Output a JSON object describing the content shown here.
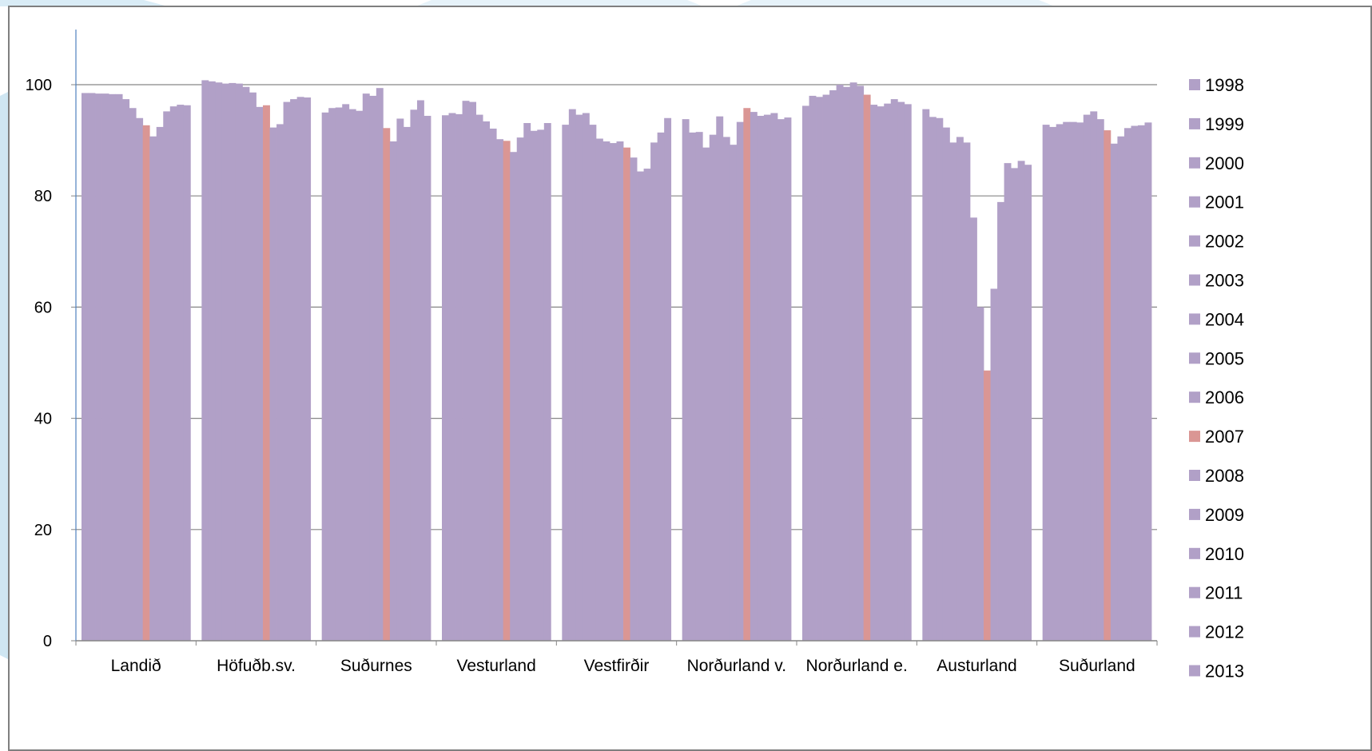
{
  "chart_data": {
    "type": "bar",
    "title": "",
    "xlabel": "",
    "ylabel": "",
    "ylim": [
      0,
      110
    ],
    "yticks": [
      0,
      20,
      40,
      60,
      80,
      100
    ],
    "grid": true,
    "legend_position": "right",
    "categories": [
      "Landið",
      "Höfuðb.sv.",
      "Suðurnes",
      "Vesturland",
      "Vestfirðir",
      "Norðurland v.",
      "Norðurland e.",
      "Austurland",
      "Suðurland"
    ],
    "series": [
      {
        "name": "1998",
        "color": "#b1a0c7",
        "values": [
          98.5,
          100.8,
          95.0,
          94.5,
          92.8,
          93.8,
          96.2,
          95.6,
          92.8
        ]
      },
      {
        "name": "1999",
        "color": "#b1a0c7",
        "values": [
          98.5,
          100.6,
          95.8,
          94.9,
          95.6,
          91.4,
          98.0,
          94.2,
          92.4
        ]
      },
      {
        "name": "2000",
        "color": "#b1a0c7",
        "values": [
          98.4,
          100.4,
          95.9,
          94.7,
          94.6,
          91.5,
          97.8,
          94.0,
          92.9
        ]
      },
      {
        "name": "2001",
        "color": "#b1a0c7",
        "values": [
          98.4,
          100.2,
          96.5,
          97.1,
          94.9,
          88.7,
          98.2,
          92.3,
          93.3
        ]
      },
      {
        "name": "2002",
        "color": "#b1a0c7",
        "values": [
          98.3,
          100.3,
          95.6,
          96.9,
          92.8,
          91.0,
          99.0,
          89.6,
          93.3
        ]
      },
      {
        "name": "2003",
        "color": "#b1a0c7",
        "values": [
          98.3,
          100.2,
          95.3,
          94.6,
          90.3,
          94.3,
          100.0,
          90.6,
          93.2
        ]
      },
      {
        "name": "2004",
        "color": "#b1a0c7",
        "values": [
          97.4,
          99.6,
          98.4,
          93.4,
          89.8,
          90.6,
          99.6,
          89.6,
          94.6
        ]
      },
      {
        "name": "2005",
        "color": "#b1a0c7",
        "values": [
          95.8,
          98.6,
          98.0,
          92.1,
          89.5,
          89.2,
          100.4,
          76.1,
          95.2
        ]
      },
      {
        "name": "2006",
        "color": "#b1a0c7",
        "values": [
          94.0,
          96.0,
          99.4,
          90.2,
          89.8,
          93.3,
          99.8,
          60.0,
          93.8
        ]
      },
      {
        "name": "2007",
        "color": "#da9694",
        "values": [
          92.7,
          96.3,
          92.2,
          89.9,
          88.7,
          95.8,
          98.2,
          48.6,
          91.8
        ]
      },
      {
        "name": "2008",
        "color": "#b1a0c7",
        "values": [
          90.7,
          92.3,
          89.8,
          87.9,
          86.9,
          95.1,
          96.4,
          63.3,
          89.4
        ]
      },
      {
        "name": "2009",
        "color": "#b1a0c7",
        "values": [
          92.4,
          92.9,
          93.9,
          90.5,
          84.4,
          94.4,
          96.1,
          78.9,
          90.7
        ]
      },
      {
        "name": "2010",
        "color": "#b1a0c7",
        "values": [
          95.2,
          96.9,
          92.4,
          93.1,
          84.9,
          94.6,
          96.6,
          85.9,
          92.2
        ]
      },
      {
        "name": "2011",
        "color": "#b1a0c7",
        "values": [
          96.1,
          97.4,
          95.5,
          91.7,
          89.6,
          94.9,
          97.4,
          85.0,
          92.6
        ]
      },
      {
        "name": "2012",
        "color": "#b1a0c7",
        "values": [
          96.4,
          97.8,
          97.2,
          91.9,
          91.4,
          93.8,
          96.9,
          86.3,
          92.7
        ]
      },
      {
        "name": "2013",
        "color": "#b1a0c7",
        "values": [
          96.3,
          97.7,
          94.4,
          93.1,
          94.0,
          94.1,
          96.5,
          85.6,
          93.2
        ]
      }
    ]
  }
}
